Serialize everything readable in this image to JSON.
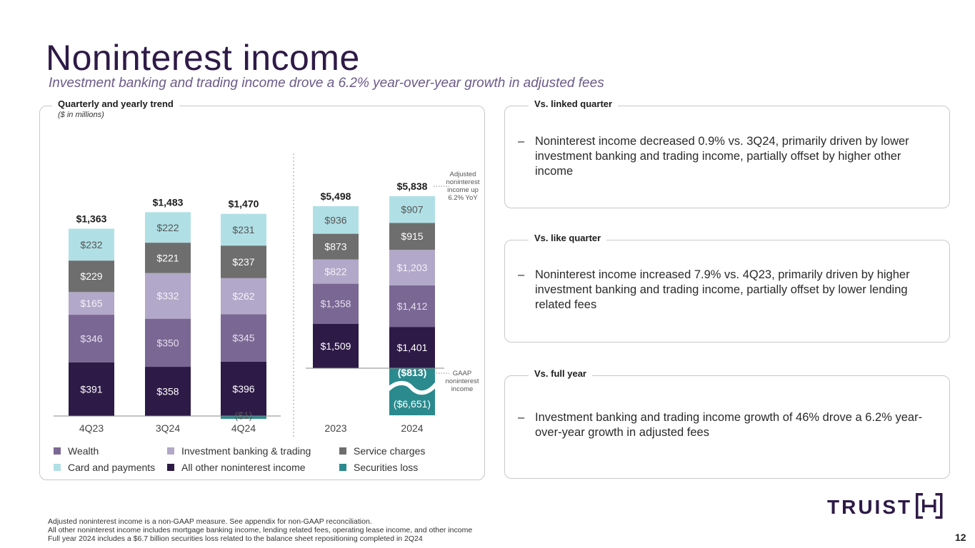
{
  "header": {
    "title": "Noninterest income",
    "subtitle": "Investment banking and trading income drove a 6.2% year-over-year growth in adjusted fees"
  },
  "chart_panel": {
    "label": "Quarterly and yearly trend",
    "units": "($ in millions)"
  },
  "chart_data": {
    "type": "bar",
    "stacked": true,
    "categories": [
      "4Q23",
      "3Q24",
      "4Q24",
      "2023",
      "2024"
    ],
    "series": [
      {
        "name": "All other noninterest income",
        "color": "#2e1a47",
        "values": [
          391,
          358,
          396,
          1509,
          1401
        ],
        "labels": [
          "$391",
          "$358",
          "$396",
          "$1,509",
          "$1,401"
        ]
      },
      {
        "name": "Wealth",
        "color": "#7b6794",
        "values": [
          346,
          350,
          345,
          1358,
          1412
        ],
        "labels": [
          "$346",
          "$350",
          "$345",
          "$1,358",
          "$1,412"
        ]
      },
      {
        "name": "Investment banking & trading",
        "color": "#b2a8c9",
        "values": [
          165,
          332,
          262,
          822,
          1203
        ],
        "labels": [
          "$165",
          "$332",
          "$262",
          "$822",
          "$1,203"
        ]
      },
      {
        "name": "Service charges",
        "color": "#6e6e6e",
        "values": [
          229,
          221,
          237,
          873,
          915
        ],
        "labels": [
          "$229",
          "$221",
          "$237",
          "$873",
          "$915"
        ]
      },
      {
        "name": "Card and payments",
        "color": "#b0e0e6",
        "values": [
          232,
          222,
          231,
          936,
          907
        ],
        "labels": [
          "$232",
          "$222",
          "$231",
          "$936",
          "$907"
        ]
      },
      {
        "name": "Securities loss",
        "color": "#2b8a8e",
        "values": [
          0,
          0,
          -1,
          0,
          -6651
        ],
        "labels": [
          "",
          "",
          "($1)",
          "",
          "($6,651)"
        ]
      }
    ],
    "totals": [
      "$1,363",
      "$1,483",
      "$1,470",
      "$5,498",
      "$5,838"
    ],
    "gaap_2024_label": "($813)",
    "annotations": {
      "adjusted": "Adjusted noninterest income up 6.2% YoY",
      "gaap": "GAAP noninterest income"
    },
    "groups": [
      "quarterly",
      "yearly"
    ]
  },
  "legend": {
    "items": [
      {
        "name": "Wealth",
        "color": "#7b6794"
      },
      {
        "name": "Investment banking & trading",
        "color": "#b2a8c9"
      },
      {
        "name": "Service charges",
        "color": "#6e6e6e"
      },
      {
        "name": "Card and payments",
        "color": "#b0e0e6"
      },
      {
        "name": "All other noninterest income",
        "color": "#2e1a47"
      },
      {
        "name": "Securities loss",
        "color": "#2b8a8e"
      }
    ]
  },
  "right_panels": [
    {
      "label": "Vs. linked quarter",
      "dash": "–",
      "text": "Noninterest income decreased 0.9% vs. 3Q24, primarily driven by lower investment banking and trading income, partially offset by higher other income"
    },
    {
      "label": "Vs. like quarter",
      "dash": "–",
      "text": "Noninterest income increased 7.9% vs. 4Q23, primarily driven by higher investment banking and trading income, partially offset by lower lending related fees"
    },
    {
      "label": "Vs. full year",
      "dash": "–",
      "text": "Investment banking and trading income growth of 46% drove a 6.2% year-over-year growth in adjusted fees"
    }
  ],
  "footnotes": [
    "Adjusted noninterest income is a non-GAAP measure.  See appendix for non-GAAP reconciliation.",
    "All other noninterest income includes mortgage banking income, lending related fees, operating lease income, and other income",
    "Full year 2024 includes a $6.7 billion securities loss related to the balance sheet repositioning completed in 2Q24"
  ],
  "brand": {
    "name": "TRUIST",
    "color": "#2e1a47"
  },
  "page_number": "12"
}
